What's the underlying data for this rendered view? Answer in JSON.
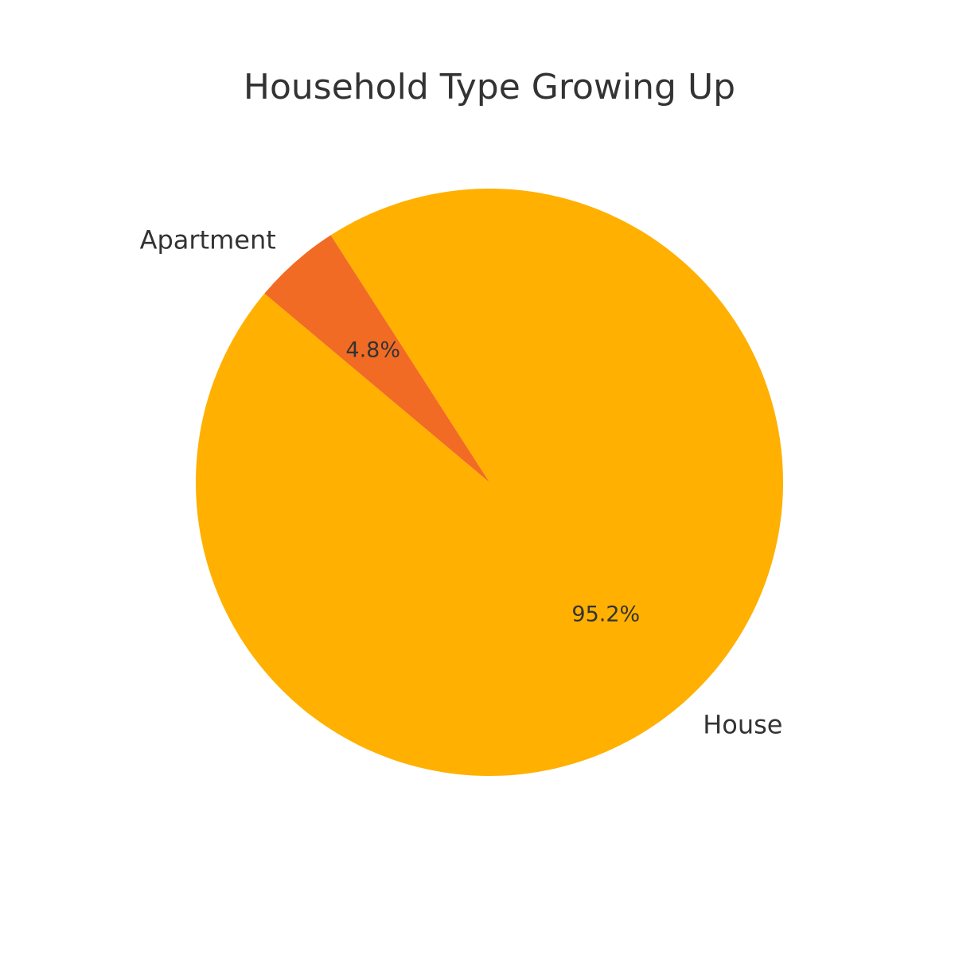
{
  "chart_data": {
    "type": "pie",
    "title": "Household Type Growing Up",
    "slices": [
      {
        "label": "House",
        "value": 95.2,
        "pct_label": "95.2%",
        "color": "#FFB000"
      },
      {
        "label": "Apartment",
        "value": 4.8,
        "pct_label": "4.8%",
        "color": "#F26B24"
      }
    ],
    "start_angle_deg": 140,
    "direction": "counterclockwise",
    "legend": "none"
  }
}
